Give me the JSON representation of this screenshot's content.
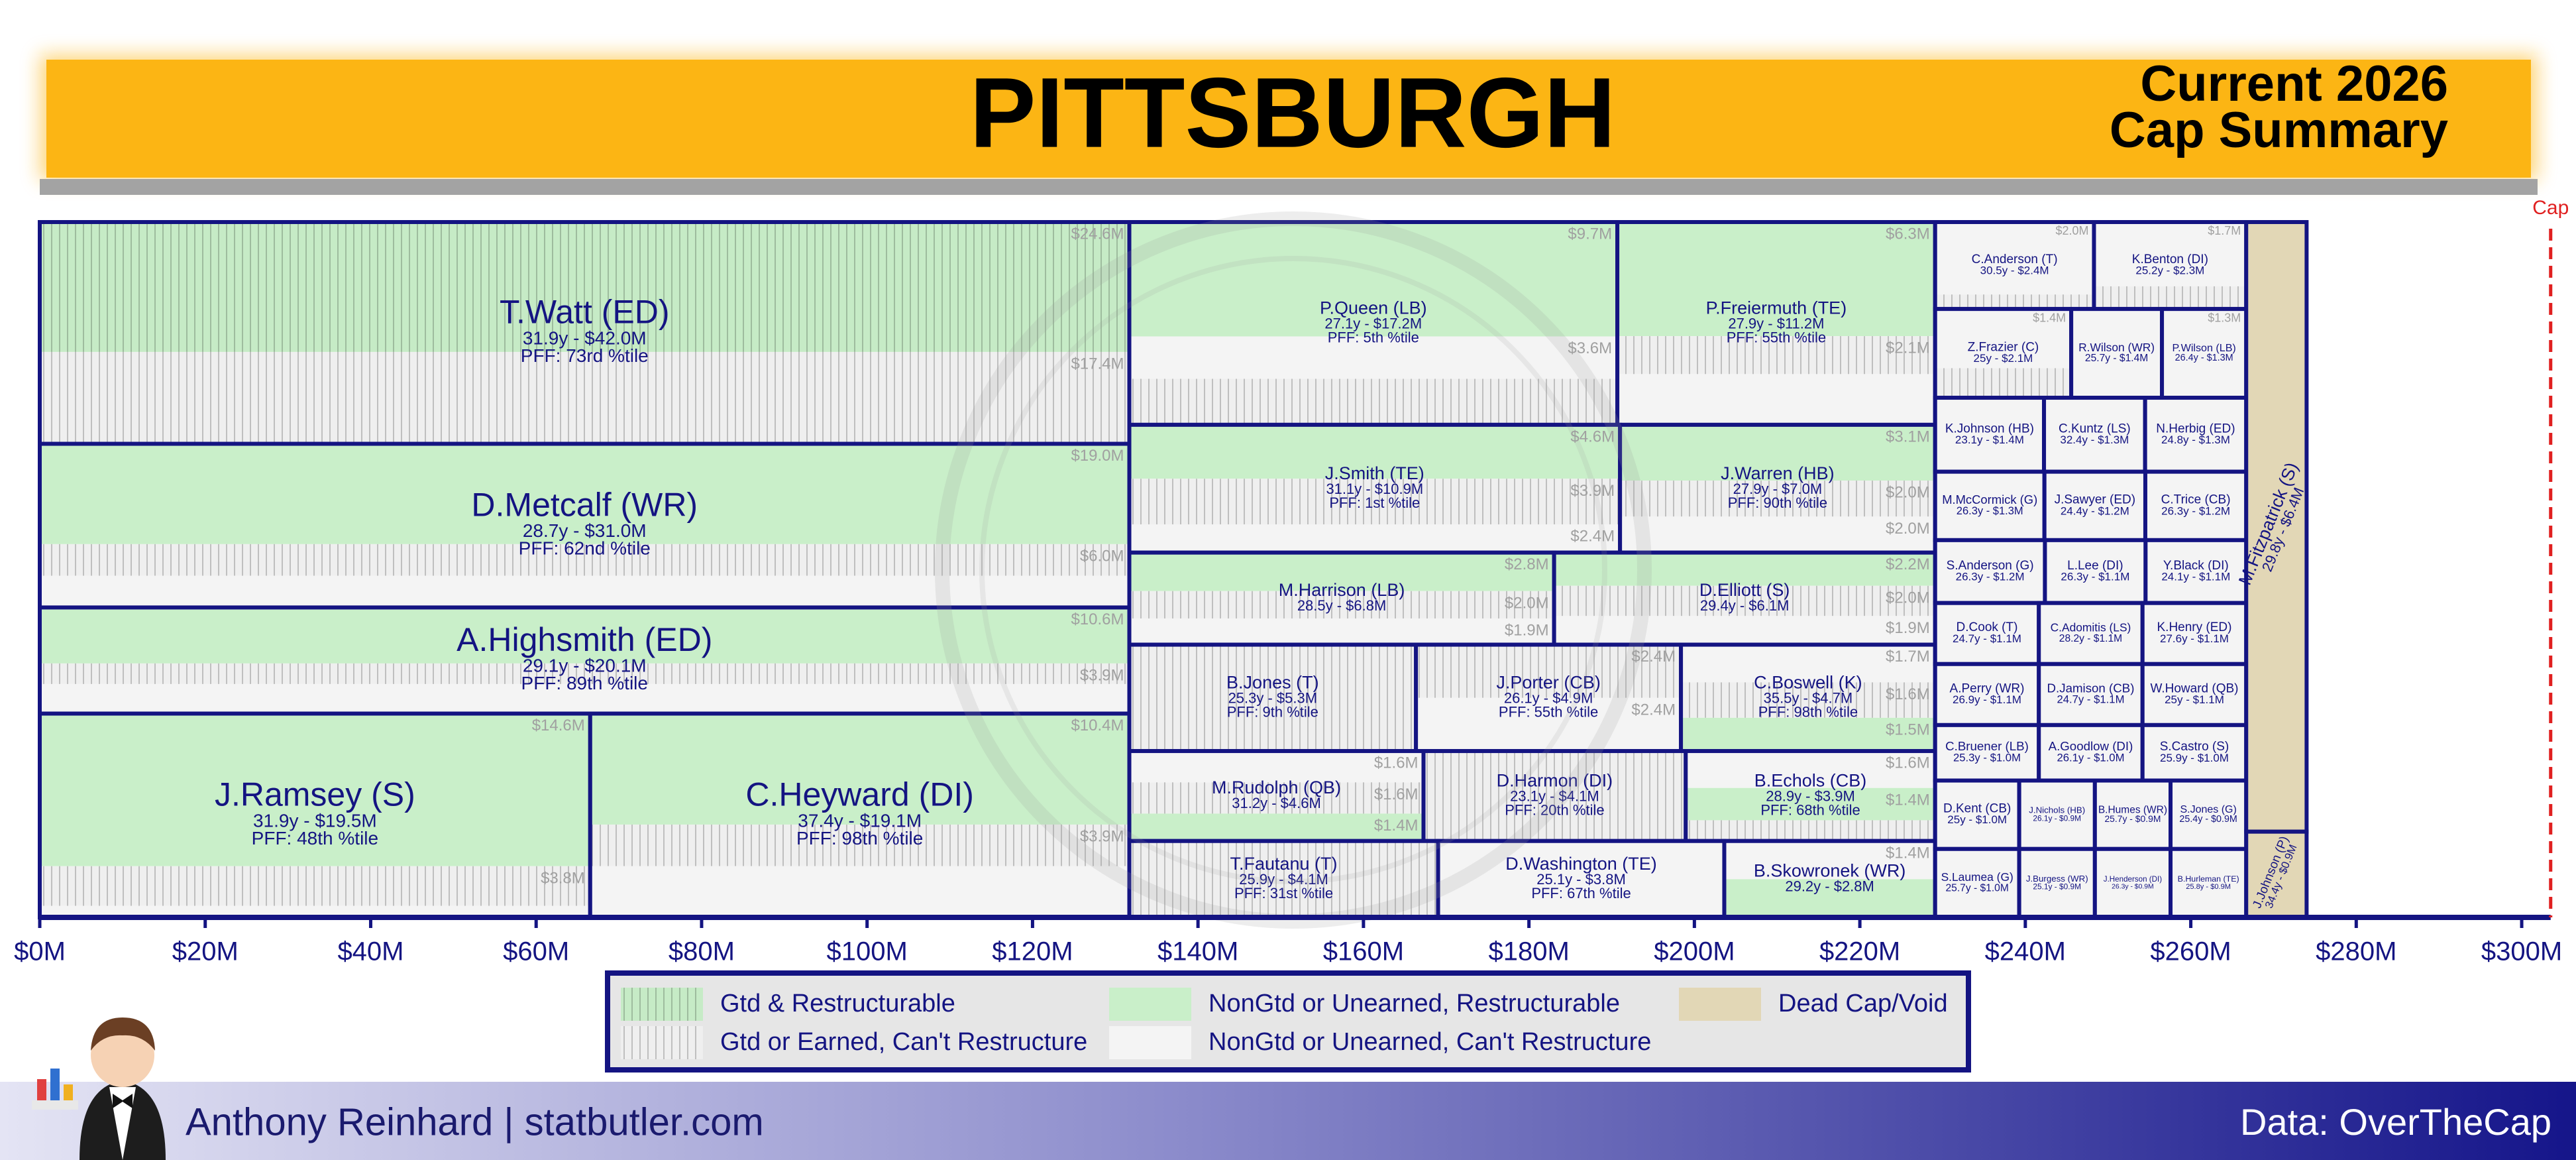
{
  "chart_data": {
    "type": "treemap",
    "title": "PITTSBURGH",
    "subtitle_lines": [
      "Current 2026",
      "Cap Summary"
    ],
    "credit": "Anthony Reinhard  |  statbutler.com",
    "source": "Data: OverTheCap",
    "xlim": [
      0,
      304
    ],
    "xticks": [
      {
        "value": 0,
        "label": "$0M"
      },
      {
        "value": 20,
        "label": "$20M"
      },
      {
        "value": 40,
        "label": "$40M"
      },
      {
        "value": 60,
        "label": "$60M"
      },
      {
        "value": 80,
        "label": "$80M"
      },
      {
        "value": 100,
        "label": "$100M"
      },
      {
        "value": 120,
        "label": "$120M"
      },
      {
        "value": 140,
        "label": "$140M"
      },
      {
        "value": 160,
        "label": "$160M"
      },
      {
        "value": 180,
        "label": "$180M"
      },
      {
        "value": 200,
        "label": "$200M"
      },
      {
        "value": 220,
        "label": "$220M"
      },
      {
        "value": 240,
        "label": "$240M"
      },
      {
        "value": 260,
        "label": "$260M"
      },
      {
        "value": 280,
        "label": "$280M"
      },
      {
        "value": 300,
        "label": "$300M"
      }
    ],
    "cap_line": {
      "value": 303.5,
      "label": "Cap",
      "color": "#e02020"
    },
    "border_color": "#141482",
    "legend": [
      {
        "name": "Gtd & Restructurable",
        "color": "#c6ebc6",
        "hatched": true
      },
      {
        "name": "Gtd or Earned, Can't Restructure",
        "color": "#efefef",
        "hatched": true
      },
      {
        "name": "NonGtd or Unearned, Restructurable",
        "color": "#c9efc9",
        "hatched": false
      },
      {
        "name": "NonGtd or Unearned, Can't Restructure",
        "color": "#f4f4f4",
        "hatched": false
      },
      {
        "name": "Dead Cap/Void",
        "color": "#e2d7b6",
        "hatched": false
      }
    ],
    "columns": [
      [
        [
          {
            "name": "T.Watt (ED)",
            "value": 42.0,
            "value_label": "31.9y - $42.0M",
            "pff": "PFF: 73rd %tile",
            "segments": [
              {
                "kind": 0,
                "value": 24.6,
                "value_label": "$24.6M"
              },
              {
                "kind": 1,
                "value": 17.4,
                "value_label": "$17.4M"
              }
            ]
          }
        ],
        [
          {
            "name": "D.Metcalf (WR)",
            "value": 31.0,
            "value_label": "28.7y - $31.0M",
            "pff": "PFF: 62nd %tile",
            "segments": [
              {
                "kind": 2,
                "value": 19.0,
                "value_label": "$19.0M"
              },
              {
                "kind": 1,
                "value": 6.0,
                "value_label": "$6.0M"
              },
              {
                "kind": 3,
                "value": 6.0
              }
            ]
          }
        ],
        [
          {
            "name": "A.Highsmith (ED)",
            "value": 20.1,
            "value_label": "29.1y - $20.1M",
            "pff": "PFF: 89th %tile",
            "segments": [
              {
                "kind": 2,
                "value": 10.6,
                "value_label": "$10.6M"
              },
              {
                "kind": 1,
                "value": 3.9,
                "value_label": "$3.9M"
              },
              {
                "kind": 3,
                "value": 5.6
              }
            ]
          }
        ],
        [
          {
            "name": "J.Ramsey (S)",
            "value": 19.5,
            "value_label": "31.9y - $19.5M",
            "pff": "PFF: 48th %tile",
            "segments": [
              {
                "kind": 2,
                "value": 14.6,
                "value_label": "$14.6M"
              },
              {
                "kind": 1,
                "value": 3.8,
                "value_label": "$3.8M"
              },
              {
                "kind": 3,
                "value": 1.1
              }
            ]
          },
          {
            "name": "C.Heyward (DI)",
            "value": 19.1,
            "value_label": "37.4y - $19.1M",
            "pff": "PFF: 98th %tile",
            "segments": [
              {
                "kind": 2,
                "value": 10.4,
                "value_label": "$10.4M"
              },
              {
                "kind": 1,
                "value": 3.9,
                "value_label": "$3.9M"
              },
              {
                "kind": 3,
                "value": 4.8
              }
            ]
          }
        ]
      ],
      [
        [
          {
            "name": "P.Queen (LB)",
            "value": 17.2,
            "value_label": "27.1y - $17.2M",
            "pff": "PFF: 5th %tile",
            "segments": [
              {
                "kind": 2,
                "value": 9.7,
                "value_label": "$9.7M"
              },
              {
                "kind": 3,
                "value": 3.6,
                "value_label": "$3.6M"
              },
              {
                "kind": 1,
                "value": 3.9
              }
            ]
          },
          {
            "name": "P.Freiermuth (TE)",
            "value": 11.2,
            "value_label": "27.9y - $11.2M",
            "pff": "PFF: 55th %tile",
            "segments": [
              {
                "kind": 2,
                "value": 6.3,
                "value_label": "$6.3M"
              },
              {
                "kind": 1,
                "value": 2.1,
                "value_label": "$2.1M"
              },
              {
                "kind": 3,
                "value": 2.8
              }
            ]
          }
        ],
        [
          {
            "name": "J.Smith (TE)",
            "value": 10.9,
            "value_label": "31.1y - $10.9M",
            "pff": "PFF: 1st %tile",
            "segments": [
              {
                "kind": 2,
                "value": 4.6,
                "value_label": "$4.6M"
              },
              {
                "kind": 1,
                "value": 3.9,
                "value_label": "$3.9M"
              },
              {
                "kind": 3,
                "value": 2.4,
                "value_label": "$2.4M"
              }
            ]
          },
          {
            "name": "J.Warren (HB)",
            "value": 7.0,
            "value_label": "27.9y - $7.0M",
            "pff": "PFF: 90th %tile",
            "segments": [
              {
                "kind": 2,
                "value": 3.1,
                "value_label": "$3.1M"
              },
              {
                "kind": 1,
                "value": 2.0,
                "value_label": "$2.0M"
              },
              {
                "kind": 3,
                "value": 2.0,
                "value_label": "$2.0M"
              }
            ]
          }
        ],
        [
          {
            "name": "M.Harrison (LB)",
            "value": 6.8,
            "value_label": "28.5y - $6.8M",
            "segments": [
              {
                "kind": 2,
                "value": 2.8,
                "value_label": "$2.8M"
              },
              {
                "kind": 1,
                "value": 2.0,
                "value_label": "$2.0M"
              },
              {
                "kind": 3,
                "value": 1.9,
                "value_label": "$1.9M"
              }
            ]
          },
          {
            "name": "D.Elliott (S)",
            "value": 6.1,
            "value_label": "29.4y - $6.1M",
            "segments": [
              {
                "kind": 2,
                "value": 2.2,
                "value_label": "$2.2M"
              },
              {
                "kind": 1,
                "value": 2.0,
                "value_label": "$2.0M"
              },
              {
                "kind": 3,
                "value": 1.9,
                "value_label": "$1.9M"
              }
            ]
          }
        ],
        [
          {
            "name": "B.Jones (T)",
            "value": 5.3,
            "value_label": "25.3y - $5.3M",
            "pff": "PFF: 9th %tile",
            "kind": 1
          },
          {
            "name": "J.Porter (CB)",
            "value": 4.9,
            "value_label": "26.1y - $4.9M",
            "pff": "PFF: 55th %tile",
            "segments": [
              {
                "kind": 1,
                "value": 2.4,
                "value_label": "$2.4M"
              },
              {
                "kind": 3,
                "value": 2.4,
                "value_label": "$2.4M"
              }
            ]
          },
          {
            "name": "C.Boswell (K)",
            "value": 4.7,
            "value_label": "35.5y - $4.7M",
            "pff": "PFF: 98th %tile",
            "segments": [
              {
                "kind": 3,
                "value": 1.7,
                "value_label": "$1.7M"
              },
              {
                "kind": 1,
                "value": 1.6,
                "value_label": "$1.6M"
              },
              {
                "kind": 2,
                "value": 1.5,
                "value_label": "$1.5M"
              }
            ]
          }
        ],
        [
          {
            "name": "M.Rudolph (QB)",
            "value": 4.6,
            "value_label": "31.2y - $4.6M",
            "segments": [
              {
                "kind": 3,
                "value": 1.6,
                "value_label": "$1.6M"
              },
              {
                "kind": 1,
                "value": 1.6,
                "value_label": "$1.6M"
              },
              {
                "kind": 2,
                "value": 1.4,
                "value_label": "$1.4M"
              }
            ]
          },
          {
            "name": "D.Harmon (DI)",
            "value": 4.1,
            "value_label": "23.1y - $4.1M",
            "pff": "PFF: 20th %tile",
            "kind": 1
          },
          {
            "name": "B.Echols (CB)",
            "value": 3.9,
            "value_label": "28.9y - $3.9M",
            "pff": "PFF: 68th %tile",
            "segments": [
              {
                "kind": 3,
                "value": 1.6,
                "value_label": "$1.6M"
              },
              {
                "kind": 2,
                "value": 1.4,
                "value_label": "$1.4M"
              },
              {
                "kind": 1,
                "value": 0.9
              }
            ]
          }
        ],
        [
          {
            "name": "T.Fautanu (T)",
            "value": 4.1,
            "value_label": "25.9y - $4.1M",
            "pff": "PFF: 31st %tile",
            "kind": 1
          },
          {
            "name": "D.Washington (TE)",
            "value": 3.8,
            "value_label": "25.1y - $3.8M",
            "pff": "PFF: 67th %tile",
            "kind": 3
          },
          {
            "name": "B.Skowronek (WR)",
            "value": 2.8,
            "value_label": "29.2y - $2.8M",
            "segments": [
              {
                "kind": 3,
                "value": 1.4,
                "value_label": "$1.4M"
              },
              {
                "kind": 2,
                "value": 1.4
              }
            ]
          }
        ]
      ],
      [
        [
          {
            "name": "C.Anderson (T)",
            "value": 2.4,
            "value_label": "30.5y - $2.4M",
            "segments": [
              {
                "kind": 3,
                "value": 2.0,
                "value_label": "$2.0M"
              },
              {
                "kind": 1,
                "value": 0.4
              }
            ]
          },
          {
            "name": "K.Benton (DI)",
            "value": 2.3,
            "value_label": "25.2y - $2.3M",
            "segments": [
              {
                "kind": 3,
                "value": 1.7,
                "value_label": "$1.7M"
              },
              {
                "kind": 1,
                "value": 0.6
              }
            ]
          }
        ],
        [
          {
            "name": "Z.Frazier (C)",
            "value": 2.1,
            "value_label": "25y - $2.1M",
            "segments": [
              {
                "kind": 3,
                "value": 1.4,
                "value_label": "$1.4M"
              },
              {
                "kind": 1,
                "value": 0.7
              }
            ]
          },
          {
            "name": "R.Wilson (WR)",
            "value": 1.4,
            "value_label": "25.7y - $1.4M",
            "kind": 3
          },
          {
            "name": "P.Wilson (LB)",
            "value": 1.3,
            "value_label": "26.4y - $1.3M",
            "segments": [
              {
                "kind": 3,
                "value": 1.3,
                "value_label": "$1.3M"
              }
            ]
          }
        ],
        [
          {
            "name": "K.Johnson (HB)",
            "value": 1.4,
            "value_label": "23.1y - $1.4M",
            "kind": 3
          },
          {
            "name": "C.Kuntz (LS)",
            "value": 1.3,
            "value_label": "32.4y - $1.3M",
            "kind": 3
          },
          {
            "name": "N.Herbig (ED)",
            "value": 1.3,
            "value_label": "24.8y - $1.3M",
            "kind": 3
          }
        ],
        [
          {
            "name": "M.McCormick (G)",
            "value": 1.3,
            "value_label": "26.3y - $1.3M",
            "kind": 3
          },
          {
            "name": "J.Sawyer (ED)",
            "value": 1.2,
            "value_label": "24.4y - $1.2M",
            "kind": 3
          },
          {
            "name": "C.Trice (CB)",
            "value": 1.2,
            "value_label": "26.3y - $1.2M",
            "kind": 3
          }
        ],
        [
          {
            "name": "S.Anderson (G)",
            "value": 1.2,
            "value_label": "26.3y - $1.2M",
            "kind": 3
          },
          {
            "name": "L.Lee (DI)",
            "value": 1.1,
            "value_label": "26.3y - $1.1M",
            "kind": 3
          },
          {
            "name": "Y.Black (DI)",
            "value": 1.1,
            "value_label": "24.1y - $1.1M",
            "kind": 3
          }
        ],
        [
          {
            "name": "D.Cook (T)",
            "value": 1.1,
            "value_label": "24.7y - $1.1M",
            "kind": 3
          },
          {
            "name": "C.Adomitis (LS)",
            "value": 1.1,
            "value_label": "28.2y - $1.1M",
            "kind": 3
          },
          {
            "name": "K.Henry (ED)",
            "value": 1.1,
            "value_label": "27.6y - $1.1M",
            "kind": 3
          }
        ],
        [
          {
            "name": "A.Perry (WR)",
            "value": 1.1,
            "value_label": "26.9y - $1.1M",
            "kind": 3
          },
          {
            "name": "D.Jamison (CB)",
            "value": 1.1,
            "value_label": "24.7y - $1.1M",
            "kind": 3
          },
          {
            "name": "W.Howard (QB)",
            "value": 1.1,
            "value_label": "25y - $1.1M",
            "kind": 3
          }
        ],
        [
          {
            "name": "C.Bruener (LB)",
            "value": 1.0,
            "value_label": "25.3y - $1.0M",
            "kind": 3
          },
          {
            "name": "A.Goodlow (DI)",
            "value": 1.0,
            "value_label": "26.1y - $1.0M",
            "kind": 3
          },
          {
            "name": "S.Castro (S)",
            "value": 1.0,
            "value_label": "25.9y - $1.0M",
            "kind": 3
          }
        ],
        [
          {
            "name": "D.Kent (CB)",
            "value": 1.0,
            "value_label": "25y - $1.0M",
            "kind": 3
          },
          {
            "name": "J.Nichols (HB)",
            "value": 0.9,
            "value_label": "26.1y - $0.9M",
            "kind": 3
          },
          {
            "name": "B.Humes (WR)",
            "value": 0.9,
            "value_label": "25.7y - $0.9M",
            "kind": 3
          },
          {
            "name": "S.Jones (G)",
            "value": 0.9,
            "value_label": "25.4y - $0.9M",
            "kind": 3
          }
        ],
        [
          {
            "name": "S.Laumea (G)",
            "value": 1.0,
            "value_label": "25.7y - $1.0M",
            "kind": 3
          },
          {
            "name": "J.Burgess (WR)",
            "value": 0.9,
            "value_label": "25.1y - $0.9M",
            "kind": 3
          },
          {
            "name": "J.Henderson (DI)",
            "value": 0.9,
            "value_label": "26.3y - $0.9M",
            "kind": 3
          },
          {
            "name": "B.Hurleman (TE)",
            "value": 0.9,
            "value_label": "25.8y - $0.9M",
            "kind": 3
          }
        ]
      ],
      [
        [
          {
            "name": "M.Fitzpatrick (S)",
            "value": 6.4,
            "value_label": "29.8y - $6.4M",
            "kind": 4
          }
        ],
        [
          {
            "name": "J.Johnson (P)",
            "value": 0.9,
            "value_label": "34.4y - $0.9M",
            "kind": 4
          }
        ]
      ]
    ]
  }
}
